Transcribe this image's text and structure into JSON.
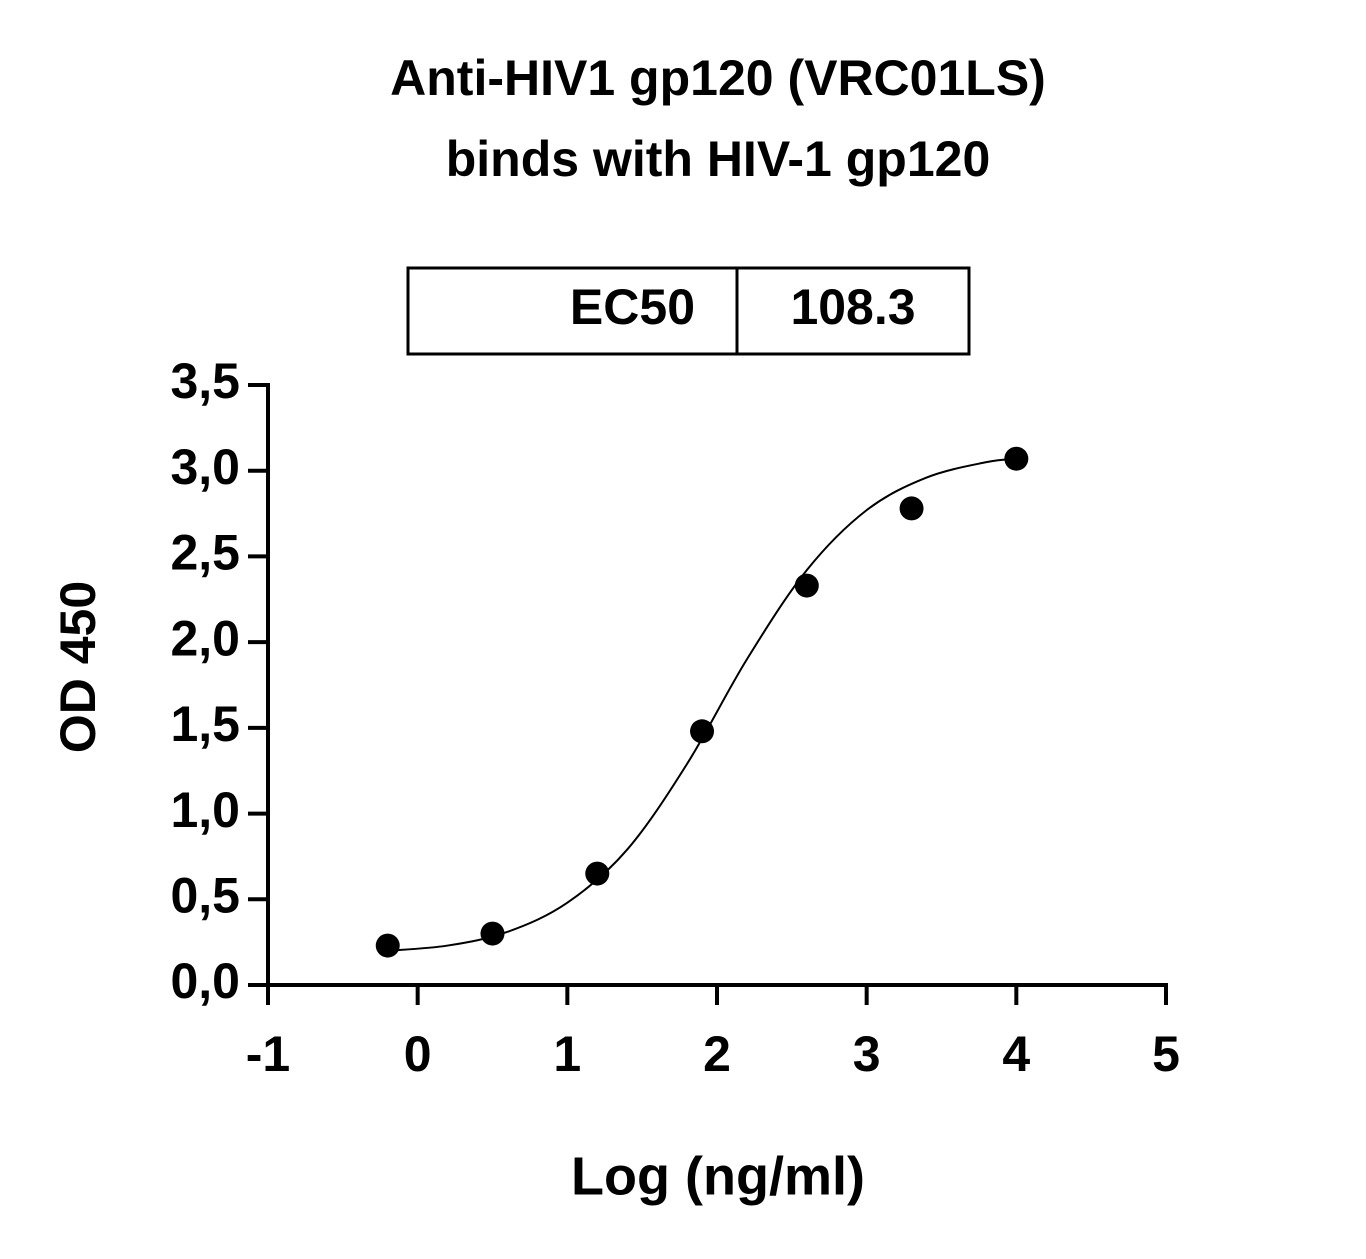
{
  "chart_data": {
    "type": "scatter",
    "title": [
      "Anti-HIV1 gp120 (VRC01LS)",
      "binds with HIV-1 gp120"
    ],
    "table": {
      "label": "EC50",
      "value": 108.3
    },
    "x_label": "Log (ng/ml)",
    "y_label": "OD 450",
    "xlim": [
      -1,
      5
    ],
    "xticks": [
      -1,
      0,
      1,
      2,
      3,
      4,
      5
    ],
    "ylim": [
      0,
      3.5
    ],
    "yticks": [
      {
        "value": 0,
        "label": "0,0"
      },
      {
        "value": 0.5,
        "label": "0,5"
      },
      {
        "value": 1,
        "label": "1,0"
      },
      {
        "value": 1.5,
        "label": "1,5"
      },
      {
        "value": 2,
        "label": "2,0"
      },
      {
        "value": 2.5,
        "label": "2,5"
      },
      {
        "value": 3,
        "label": "3,0"
      },
      {
        "value": 3.5,
        "label": "3,5"
      }
    ],
    "color": "#000000",
    "x": [
      -0.2,
      0.5,
      1.2,
      1.9,
      2.6,
      3.3,
      4.0
    ],
    "values": [
      0.23,
      0.3,
      0.65,
      1.48,
      2.33,
      2.78,
      3.07
    ],
    "curve": {
      "x": [
        -0.2,
        0.2,
        0.6,
        1.0,
        1.4,
        1.8,
        2.2,
        2.6,
        3.0,
        3.4,
        3.8,
        4.0
      ],
      "values": [
        0.2,
        0.23,
        0.31,
        0.48,
        0.79,
        1.29,
        1.9,
        2.42,
        2.77,
        2.96,
        3.05,
        3.07
      ]
    }
  }
}
